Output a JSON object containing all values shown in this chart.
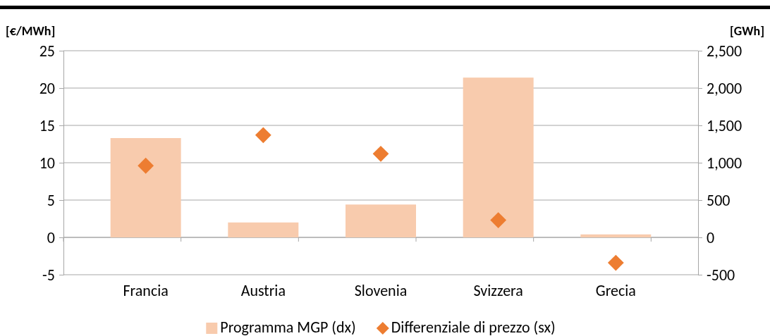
{
  "chart_data": {
    "type": "bar",
    "categories": [
      "Francia",
      "Austria",
      "Slovenia",
      "Svizzera",
      "Grecia"
    ],
    "ylabel": "[€/MWh]",
    "y2label": "[GWh]",
    "series": [
      {
        "name": "Programma MGP (dx)",
        "axis": "y2",
        "color": "#f8cbad",
        "values": [
          1330,
          200,
          440,
          2140,
          40
        ]
      },
      {
        "name": "Differenziale di prezzo (sx)",
        "type": "scatter",
        "marker": "diamond",
        "color": "#ed7d31",
        "values": [
          9.6,
          13.7,
          11.2,
          2.3,
          -3.4
        ]
      }
    ],
    "ylim": [
      -5,
      25
    ],
    "yticks": [
      -5,
      0,
      5,
      10,
      15,
      20,
      25
    ],
    "y2lim": [
      -500,
      2500
    ],
    "y2ticks": [
      -500,
      0,
      500,
      {
        "value": 1000,
        "label": "1,000"
      },
      {
        "value": 1500,
        "label": "1,500"
      },
      {
        "value": 2000,
        "label": "2,000"
      },
      {
        "value": 2500,
        "label": "2,500"
      }
    ],
    "grid": "y",
    "legend": "bottom"
  }
}
